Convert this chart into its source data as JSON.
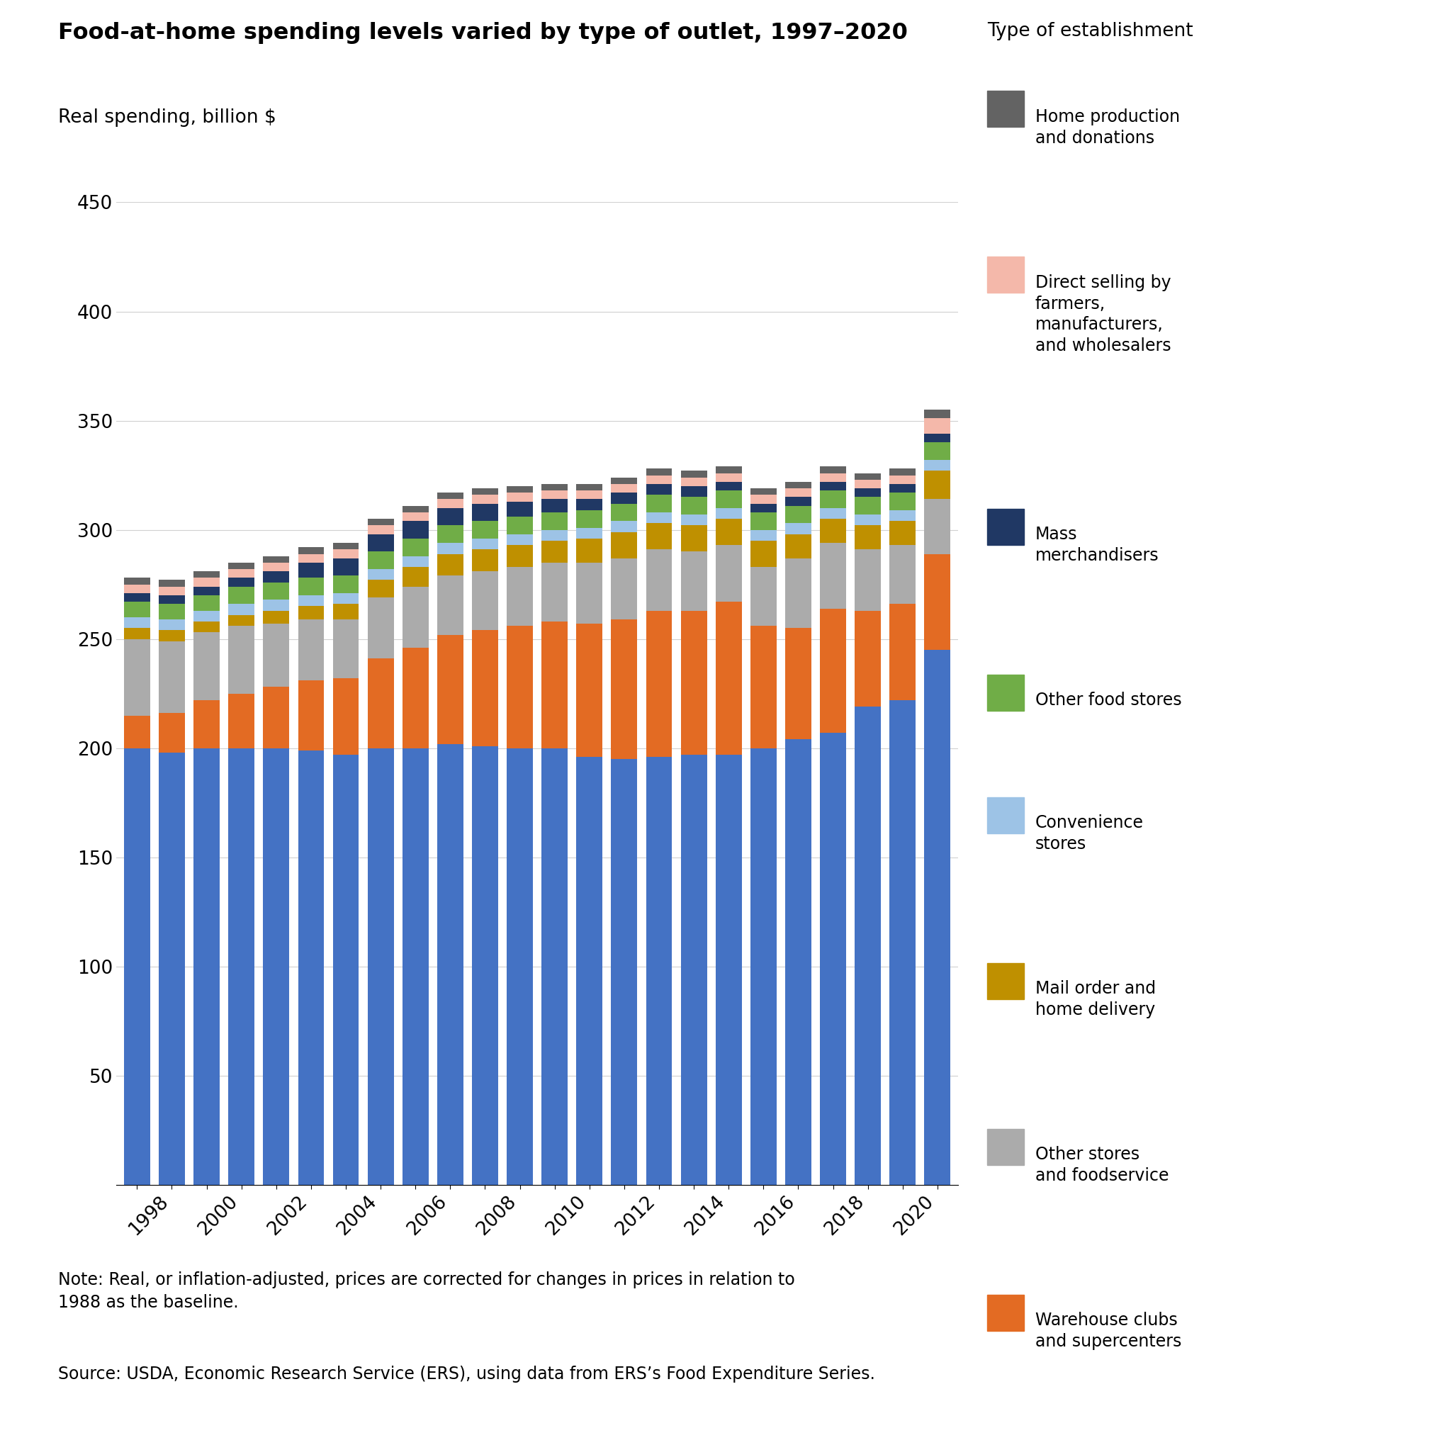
{
  "title": "Food-at-home spending levels varied by type of outlet, 1997–2020",
  "ylabel": "Real spending, billion $",
  "legend_title": "Type of establishment",
  "years": [
    1997,
    1998,
    1999,
    2000,
    2001,
    2002,
    2003,
    2004,
    2005,
    2006,
    2007,
    2008,
    2009,
    2010,
    2011,
    2012,
    2013,
    2014,
    2015,
    2016,
    2017,
    2018,
    2019,
    2020
  ],
  "grocery": [
    200,
    198,
    200,
    200,
    200,
    199,
    197,
    200,
    200,
    202,
    201,
    200,
    200,
    196,
    195,
    196,
    197,
    197,
    200,
    204,
    207,
    219,
    222,
    245
  ],
  "warehouse": [
    15,
    18,
    22,
    25,
    28,
    32,
    35,
    41,
    46,
    50,
    53,
    56,
    58,
    61,
    64,
    67,
    66,
    70,
    56,
    51,
    57,
    44,
    44,
    44
  ],
  "other_stores": [
    35,
    33,
    31,
    31,
    29,
    28,
    27,
    28,
    28,
    27,
    27,
    27,
    27,
    28,
    28,
    28,
    27,
    26,
    27,
    32,
    30,
    28,
    27,
    25
  ],
  "mail_order": [
    5,
    5,
    5,
    5,
    6,
    6,
    7,
    8,
    9,
    10,
    10,
    10,
    10,
    11,
    12,
    12,
    12,
    12,
    12,
    11,
    11,
    11,
    11,
    13
  ],
  "convenience": [
    5,
    5,
    5,
    5,
    5,
    5,
    5,
    5,
    5,
    5,
    5,
    5,
    5,
    5,
    5,
    5,
    5,
    5,
    5,
    5,
    5,
    5,
    5,
    5
  ],
  "other_food": [
    7,
    7,
    7,
    8,
    8,
    8,
    8,
    8,
    8,
    8,
    8,
    8,
    8,
    8,
    8,
    8,
    8,
    8,
    8,
    8,
    8,
    8,
    8,
    8
  ],
  "mass_merch": [
    4,
    4,
    4,
    4,
    5,
    7,
    8,
    8,
    8,
    8,
    8,
    7,
    6,
    5,
    5,
    5,
    5,
    4,
    4,
    4,
    4,
    4,
    4,
    4
  ],
  "direct_sell": [
    4,
    4,
    4,
    4,
    4,
    4,
    4,
    4,
    4,
    4,
    4,
    4,
    4,
    4,
    4,
    4,
    4,
    4,
    4,
    4,
    4,
    4,
    4,
    7
  ],
  "home_prod": [
    3,
    3,
    3,
    3,
    3,
    3,
    3,
    3,
    3,
    3,
    3,
    3,
    3,
    3,
    3,
    3,
    3,
    3,
    3,
    3,
    3,
    3,
    3,
    4
  ],
  "colors": {
    "grocery": "#4472C4",
    "warehouse": "#E36B23",
    "other_stores": "#ABABAB",
    "mail_order": "#BF9000",
    "convenience": "#9DC3E6",
    "other_food": "#70AD47",
    "mass_merch": "#203864",
    "direct_sell": "#F4B8AA",
    "home_prod": "#636363"
  },
  "ylim": [
    0,
    450
  ],
  "yticks": [
    0,
    50,
    100,
    150,
    200,
    250,
    300,
    350,
    400,
    450
  ],
  "note": "Note: Real, or inflation-adjusted, prices are corrected for changes in prices in relation to\n1988 as the baseline.",
  "source": "Source: USDA, Economic Research Service (ERS), using data from ERS’s Food Expenditure Series."
}
